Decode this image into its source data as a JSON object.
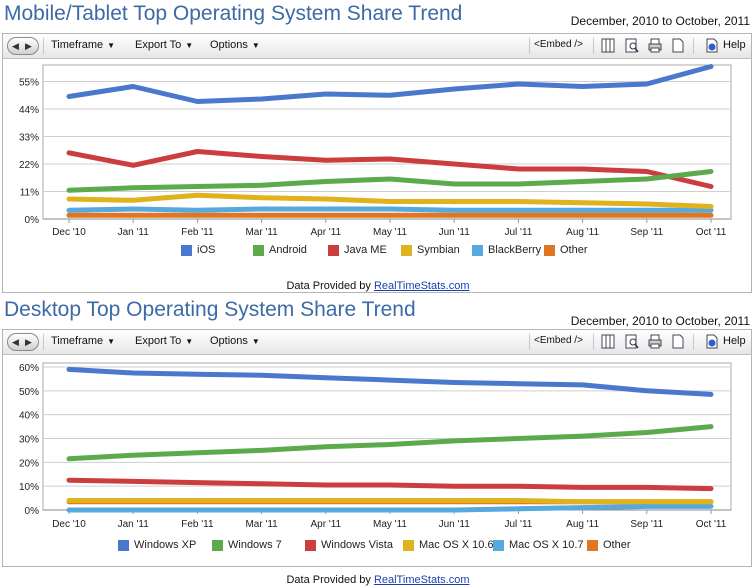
{
  "chart_data": [
    {
      "type": "line",
      "title": "Mobile/Tablet Top Operating System Share Trend",
      "date_range": "December, 2010 to October, 2011",
      "categories": [
        "Dec '10",
        "Jan '11",
        "Feb '11",
        "Mar '11",
        "Apr '11",
        "May '11",
        "Jun '11",
        "Jul '11",
        "Aug '11",
        "Sep '11",
        "Oct '11"
      ],
      "y_ticks": [
        "55%",
        "44%",
        "33%",
        "22%",
        "11%",
        "0%"
      ],
      "ylim": [
        0,
        60
      ],
      "series": [
        {
          "name": "iOS",
          "color": "#4a78cc",
          "values": [
            49,
            53,
            47,
            48,
            50,
            49.5,
            52,
            54,
            53,
            54,
            61
          ]
        },
        {
          "name": "Android",
          "color": "#5daa4d",
          "values": [
            11.5,
            12.5,
            13,
            13.5,
            15,
            16,
            14,
            14,
            15,
            16,
            19
          ]
        },
        {
          "name": "Java ME",
          "color": "#cc3d3d",
          "values": [
            26.5,
            21.5,
            27,
            25,
            23.5,
            24,
            22,
            20,
            20,
            19,
            13
          ]
        },
        {
          "name": "Symbian",
          "color": "#e0b21c",
          "values": [
            8,
            7.5,
            9.5,
            8.5,
            8,
            7,
            7,
            7,
            6.5,
            6,
            5
          ]
        },
        {
          "name": "BlackBerry",
          "color": "#56a9dd",
          "values": [
            3.5,
            4,
            3.5,
            4,
            4,
            4,
            3.5,
            3.5,
            3.5,
            3.5,
            3.5
          ]
        },
        {
          "name": "Other",
          "color": "#e17622",
          "values": [
            1.5,
            1.5,
            1.5,
            1.5,
            1.5,
            1.5,
            1.5,
            1.5,
            1.5,
            1.5,
            1.5
          ]
        }
      ],
      "credit_prefix": "Data Provided by",
      "credit_link": "RealTimeStats.com"
    },
    {
      "type": "line",
      "title": "Desktop Top Operating System Share Trend",
      "date_range": "December, 2010 to October, 2011",
      "categories": [
        "Dec '10",
        "Jan '11",
        "Feb '11",
        "Mar '11",
        "Apr '11",
        "May '11",
        "Jun '11",
        "Jul '11",
        "Aug '11",
        "Sep '11",
        "Oct '11"
      ],
      "y_ticks": [
        "60%",
        "50%",
        "40%",
        "30%",
        "20%",
        "10%",
        "0%"
      ],
      "ylim": [
        0,
        60
      ],
      "series": [
        {
          "name": "Windows XP",
          "color": "#4a78cc",
          "values": [
            59,
            57.5,
            57,
            56.5,
            55.5,
            54.5,
            53.5,
            53,
            52.5,
            50,
            48.5
          ]
        },
        {
          "name": "Windows 7",
          "color": "#5daa4d",
          "values": [
            21.5,
            23,
            24,
            25,
            26.5,
            27.5,
            29,
            30,
            31,
            32.5,
            35
          ]
        },
        {
          "name": "Windows Vista",
          "color": "#cc3d3d",
          "values": [
            12.5,
            12,
            11.5,
            11,
            10.5,
            10.5,
            10,
            10,
            9.5,
            9.5,
            9
          ]
        },
        {
          "name": "Mac OS X 10.6",
          "color": "#e0b21c",
          "values": [
            4,
            4,
            4,
            4,
            4,
            4,
            4,
            4,
            3.5,
            3.5,
            3.5
          ]
        },
        {
          "name": "Mac OS X 10.7",
          "color": "#56a9dd",
          "values": [
            0,
            0,
            0,
            0,
            0,
            0,
            0,
            0.5,
            1,
            1.5,
            1.5
          ]
        },
        {
          "name": "Other",
          "color": "#e17622",
          "values": [
            3.5,
            3.5,
            3.5,
            3.5,
            3.5,
            3.5,
            3.5,
            3.5,
            3.5,
            3.5,
            3.5
          ]
        }
      ],
      "credit_prefix": "Data Provided by",
      "credit_link": "RealTimeStats.com"
    }
  ],
  "toolbar": {
    "timeframe": "Timeframe",
    "export": "Export To",
    "options": "Options",
    "embed": "<Embed />",
    "help": "Help",
    "prev_glyph": "◀",
    "next_glyph": "▶",
    "caret_glyph": "▼"
  }
}
